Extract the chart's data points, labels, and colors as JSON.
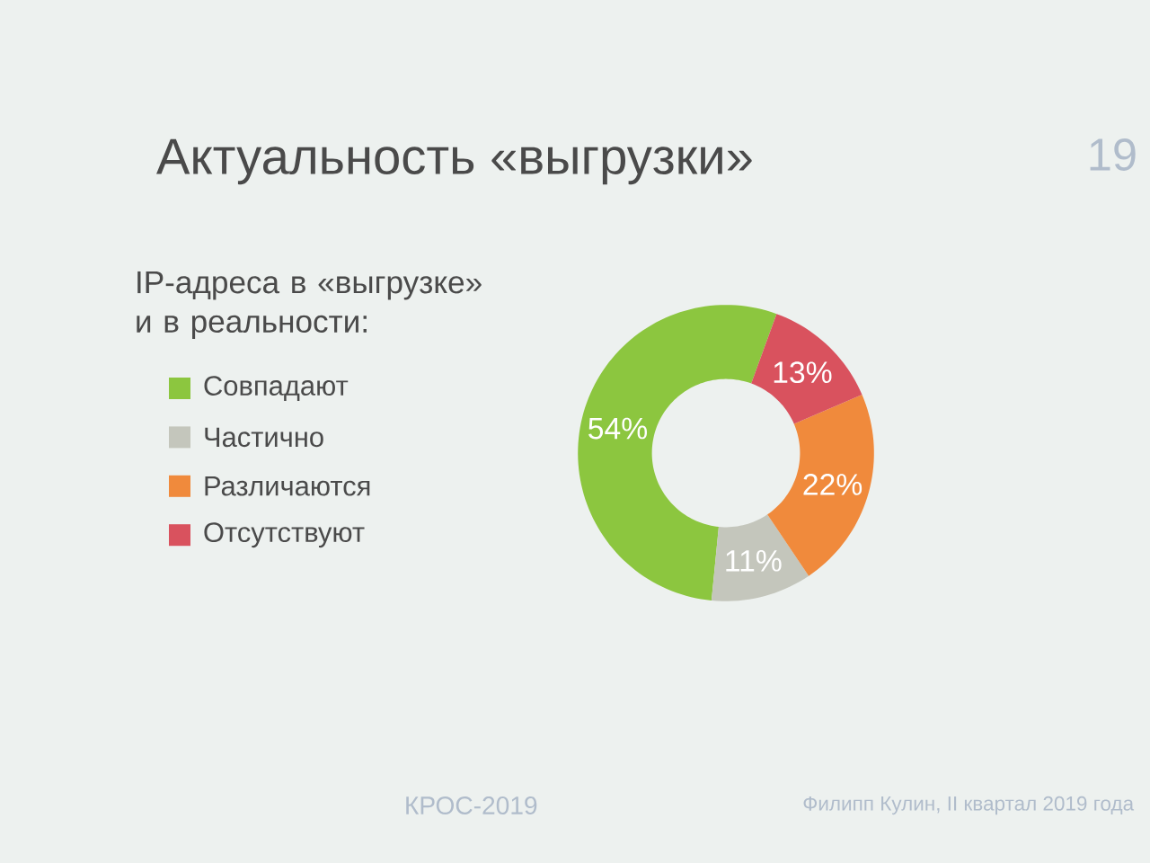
{
  "chart_data": {
    "type": "donut",
    "title": "Актуальность «выгрузки»",
    "subtitle": "IP-адреса в «выгрузке» и в реальности:",
    "categories": [
      "Совпадают",
      "Частично",
      "Различаются",
      "Отсутствуют"
    ],
    "values": [
      54,
      11,
      22,
      13
    ],
    "colors": [
      "#8cc63f",
      "#c4c6bc",
      "#f08a3c",
      "#d9525e"
    ],
    "value_labels": [
      "54%",
      "11%",
      "22%",
      "13%"
    ],
    "legend": "left",
    "annotations": [
      "19",
      "КРОС-2019",
      "Филипп Кулин, II квартал 2019 года"
    ]
  }
}
